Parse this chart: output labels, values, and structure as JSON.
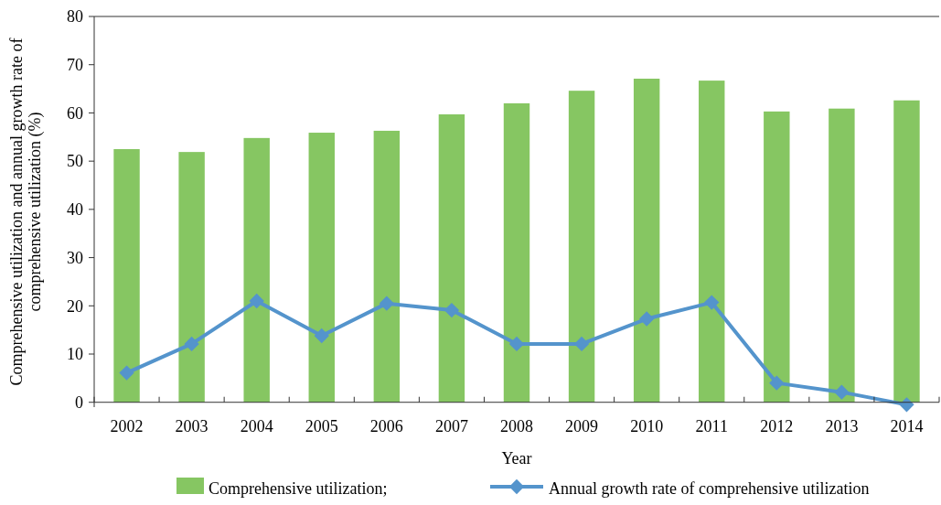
{
  "chart_data": {
    "type": "bar",
    "xlabel": "Year",
    "ylabel": "Comprehensive utilization and annual growth rate of comprehensive utilization (%)",
    "categories": [
      "2002",
      "2003",
      "2004",
      "2005",
      "2006",
      "2007",
      "2008",
      "2009",
      "2010",
      "2011",
      "2012",
      "2013",
      "2014"
    ],
    "series": [
      {
        "name": "Comprehensive utilization;",
        "color": "#86c662",
        "values": [
          52.5,
          51.9,
          54.8,
          55.9,
          56.3,
          59.7,
          62.0,
          64.6,
          67.1,
          66.7,
          60.3,
          60.9,
          62.6
        ]
      },
      {
        "name": "Annual growth rate of comprehensive utilization",
        "type": "line",
        "color": "#5494cc",
        "marker": "diamond",
        "values": [
          6.1,
          12.1,
          21.0,
          13.8,
          20.5,
          19.1,
          12.1,
          12.1,
          17.3,
          20.7,
          4.0,
          2.1,
          -0.5
        ]
      }
    ],
    "ylim": [
      -1,
      80
    ],
    "yticks": [
      0,
      10,
      20,
      30,
      40,
      50,
      60,
      70,
      80
    ],
    "grid": false,
    "legend": "bottom"
  }
}
